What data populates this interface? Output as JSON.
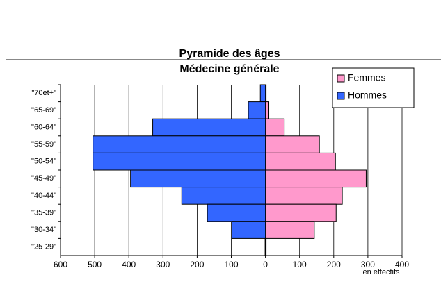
{
  "chart_data": {
    "type": "pyramid",
    "title": [
      "Pyramide des âges",
      "Médecine générale"
    ],
    "x_label": "en effectifs",
    "categories": [
      "\"70et+\"",
      "\"65-69\"",
      "\"60-64\"",
      "\"55-59\"",
      "\"50-54\"",
      "\"45-49\"",
      "\"40-44\"",
      "\"35-39\"",
      "\"30-34\"",
      "\"25-29\""
    ],
    "series": [
      {
        "name": "Femmes",
        "color": "#ff99cc",
        "values": [
          2,
          10,
          55,
          158,
          205,
          295,
          225,
          207,
          143,
          2
        ]
      },
      {
        "name": "Hommes",
        "color": "#3366ff",
        "values": [
          -15,
          -50,
          -330,
          -505,
          -505,
          -395,
          -245,
          -170,
          -98,
          -1
        ]
      }
    ],
    "xlim": [
      -600,
      400
    ],
    "xticks": [
      {
        "value": -600,
        "label": "600"
      },
      {
        "value": -500,
        "label": "500"
      },
      {
        "value": -400,
        "label": "400"
      },
      {
        "value": -300,
        "label": "300"
      },
      {
        "value": -200,
        "label": "200"
      },
      {
        "value": -100,
        "label": "100"
      },
      0,
      100,
      200,
      300,
      400
    ],
    "grid": true,
    "legend": "top-right"
  }
}
